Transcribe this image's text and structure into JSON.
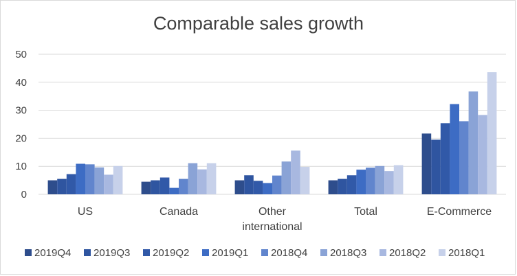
{
  "chart_data": {
    "type": "bar",
    "title": "Comparable sales growth",
    "categories": [
      "US",
      "Canada",
      "Other international",
      "Total",
      "E-Commerce"
    ],
    "category_lines": [
      [
        "US"
      ],
      [
        "Canada"
      ],
      [
        "Other",
        "international"
      ],
      [
        "Total"
      ],
      [
        "E-Commerce"
      ]
    ],
    "ylim": [
      0,
      50
    ],
    "yticks": [
      0,
      10,
      20,
      30,
      40,
      50
    ],
    "grid": true,
    "legend": "bottom",
    "series": [
      {
        "name": "2019Q4",
        "color": "#2e4d8c",
        "values": [
          5.0,
          4.5,
          5.0,
          5.0,
          21.7
        ]
      },
      {
        "name": "2019Q3",
        "color": "#2f55a0",
        "values": [
          5.5,
          5.0,
          6.8,
          5.5,
          19.5
        ]
      },
      {
        "name": "2019Q2",
        "color": "#3159a8",
        "values": [
          7.2,
          6.0,
          4.8,
          6.8,
          25.4
        ]
      },
      {
        "name": "2019Q1",
        "color": "#3d6cc4",
        "values": [
          10.9,
          2.3,
          4.0,
          8.8,
          32.2
        ]
      },
      {
        "name": "2018Q4",
        "color": "#6185cd",
        "values": [
          10.7,
          5.5,
          6.7,
          9.5,
          26.1
        ]
      },
      {
        "name": "2018Q3",
        "color": "#8aa3d6",
        "values": [
          9.6,
          11.1,
          11.7,
          10.1,
          36.7
        ]
      },
      {
        "name": "2018Q2",
        "color": "#a8b8e0",
        "values": [
          7.0,
          8.9,
          15.6,
          8.3,
          28.3
        ]
      },
      {
        "name": "2018Q1",
        "color": "#c7d1ea",
        "values": [
          10.1,
          11.1,
          9.8,
          10.4,
          43.6
        ]
      }
    ]
  }
}
